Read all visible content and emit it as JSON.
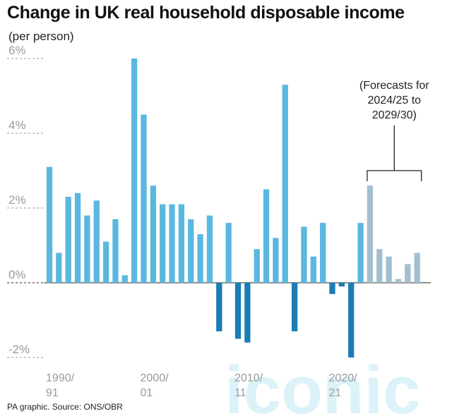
{
  "title": "Change in UK real household disposable income",
  "subtitle": "(per person)",
  "source": "PA graphic. Source: ONS/OBR",
  "watermark": "iconic",
  "colors": {
    "positive": "#5ab8e0",
    "negative": "#1a7db5",
    "forecast": "#a3bfcf",
    "axis": "#9a9a9a",
    "zero_line": "#222222"
  },
  "chart_data": {
    "type": "bar",
    "title": "Change in UK real household disposable income",
    "ylabel": "(per person)",
    "ylim": [
      -2,
      6
    ],
    "yticks": [
      -2,
      0,
      2,
      4,
      6
    ],
    "ytick_labels": [
      "-2%",
      "0%",
      "2%",
      "4%",
      "6%"
    ],
    "xtick_labels": [
      {
        "line1": "1990/",
        "line2": "91",
        "index": 0
      },
      {
        "line1": "2000/",
        "line2": "01",
        "index": 10
      },
      {
        "line1": "2010/",
        "line2": "11",
        "index": 20
      },
      {
        "line1": "2020/",
        "line2": "21",
        "index": 30
      }
    ],
    "categories": [
      "1990/91",
      "1991/92",
      "1992/93",
      "1993/94",
      "1994/95",
      "1995/96",
      "1996/97",
      "1997/98",
      "1998/99",
      "1999/00",
      "2000/01",
      "2001/02",
      "2002/03",
      "2003/04",
      "2004/05",
      "2005/06",
      "2006/07",
      "2007/08",
      "2008/09",
      "2009/10",
      "2010/11",
      "2011/12",
      "2012/13",
      "2013/14",
      "2014/15",
      "2015/16",
      "2016/17",
      "2017/18",
      "2018/19",
      "2019/20",
      "2020/21",
      "2021/22",
      "2022/23",
      "2023/24",
      "2024/25",
      "2025/26",
      "2026/27",
      "2027/28",
      "2028/29",
      "2029/30"
    ],
    "values": [
      3.1,
      0.8,
      2.3,
      2.4,
      1.8,
      2.2,
      1.1,
      1.7,
      0.2,
      6.0,
      4.5,
      2.6,
      2.1,
      2.1,
      2.1,
      1.7,
      1.3,
      1.8,
      -1.3,
      1.6,
      -1.5,
      -1.6,
      0.9,
      2.5,
      1.2,
      5.3,
      -1.3,
      1.5,
      0.7,
      1.6,
      -0.3,
      -0.1,
      -2.0,
      1.6,
      2.6,
      0.9,
      0.7,
      0.1,
      0.5,
      0.8
    ],
    "forecast_start_index": 34,
    "annotation": {
      "lines": [
        "(Forecasts for",
        "2024/25 to",
        "2029/30)"
      ]
    }
  }
}
